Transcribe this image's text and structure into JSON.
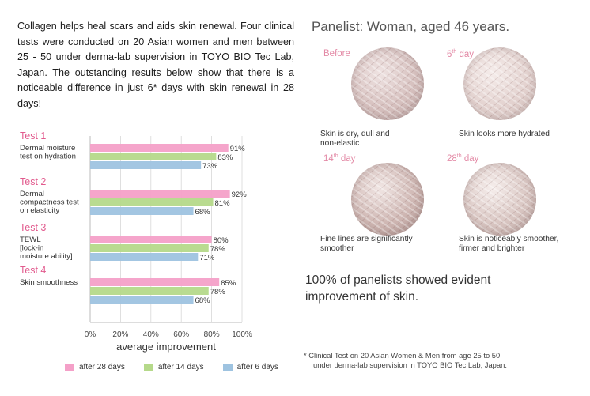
{
  "intro_text": "Collagen helps heal scars and aids skin renewal. Four clinical tests were conducted on 20 Asian women and men between 25 - 50 under derma-lab supervision in TOYO BIO Tec Lab, Japan. The outstanding results below show that there is a noticeable difference in just 6* days with skin renewal in 28 days!",
  "colors": {
    "after_28": "#f4a0c8",
    "after_14": "#b5d98a",
    "after_6": "#9ec3e0",
    "accent": "#e25b8e"
  },
  "chart_data": {
    "type": "bar",
    "orientation": "horizontal",
    "xlabel": "average improvement",
    "xlim": [
      0,
      100
    ],
    "x_ticks": [
      "0%",
      "20%",
      "40%",
      "60%",
      "80%",
      "100%"
    ],
    "grid": true,
    "legend_position": "bottom",
    "categories": [
      {
        "title": "Test 1",
        "desc": [
          "Dermal moisture",
          "test on hydration"
        ]
      },
      {
        "title": "Test 2",
        "desc": [
          "Dermal",
          "compactness test",
          "on elasticity"
        ]
      },
      {
        "title": "Test 3",
        "desc": [
          "TEWL",
          "[lock-in",
          "moisture ability]"
        ]
      },
      {
        "title": "Test 4",
        "desc": [
          "Skin smoothness"
        ]
      }
    ],
    "series": [
      {
        "name": "after 28 days",
        "values": [
          91,
          92,
          80,
          85
        ]
      },
      {
        "name": "after 14 days",
        "values": [
          83,
          81,
          78,
          78
        ]
      },
      {
        "name": "after 6 days",
        "values": [
          73,
          68,
          71,
          68
        ]
      }
    ]
  },
  "panel": {
    "title": "Panelist: Woman, aged 46 years.",
    "photos": [
      {
        "day_main": "Before",
        "day_sup": "",
        "day_suffix": "",
        "caption": [
          "Skin is dry, dull and",
          "non-elastic"
        ],
        "tone": [
          "#efe3e2",
          "#d6c0be",
          "#b8a09e"
        ]
      },
      {
        "day_main": "6",
        "day_sup": "th",
        "day_suffix": " day",
        "caption": [
          "Skin looks more hydrated"
        ],
        "tone": [
          "#f5ecea",
          "#e3d2cf",
          "#c9b4b0"
        ]
      },
      {
        "day_main": "14",
        "day_sup": "th",
        "day_suffix": " day",
        "caption": [
          "Fine lines are significantly",
          "smoother"
        ],
        "tone": [
          "#f1e6e4",
          "#cfb7b3",
          "#a88c88"
        ]
      },
      {
        "day_main": "28",
        "day_sup": "th",
        "day_suffix": " day",
        "caption": [
          "Skin is noticeably smoother,",
          "firmer and brighter"
        ],
        "tone": [
          "#f6eeec",
          "#d9c6c2",
          "#b49c98"
        ]
      }
    ]
  },
  "conclusion": "100% of panelists showed evident improvement of skin.",
  "footnote": [
    "* Clinical Test on 20 Asian Women & Men from age 25 to 50",
    "under derma-lab supervision in TOYO BIO Tec Lab, Japan."
  ]
}
